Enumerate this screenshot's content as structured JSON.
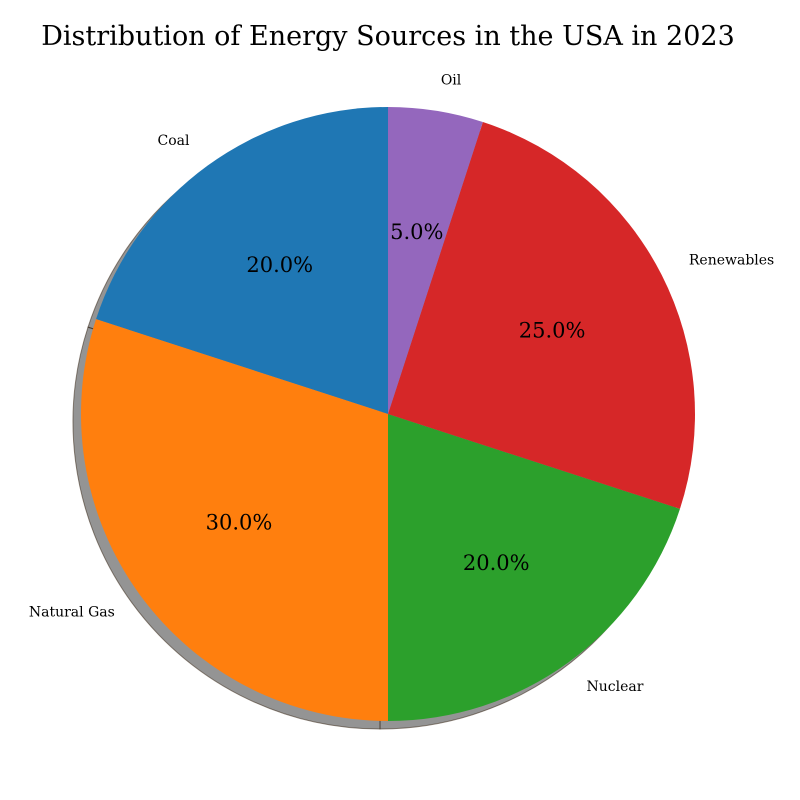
{
  "chart_data": {
    "type": "pie",
    "title": "Distribution of Energy Sources in the USA in 2023",
    "categories": [
      "Coal",
      "Natural Gas",
      "Nuclear",
      "Renewables",
      "Oil"
    ],
    "values": [
      20,
      30,
      20,
      25,
      5
    ],
    "percent_labels": [
      "20.0%",
      "30.0%",
      "20.0%",
      "25.0%",
      "5.0%"
    ],
    "colors": [
      "#1f77b4",
      "#ff7f0e",
      "#2ca02c",
      "#d62728",
      "#9467bd"
    ],
    "start_angle_deg": 90,
    "direction": "counterclockwise",
    "shadow": true,
    "legend": "none"
  }
}
